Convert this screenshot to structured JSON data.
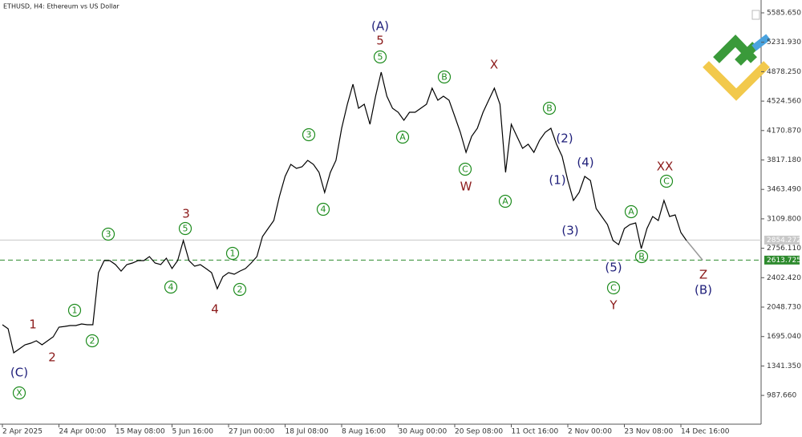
{
  "chart_data": {
    "type": "line",
    "title": "ETHUSD, H4:  Ethereum vs US Dollar",
    "color": "#000000",
    "ylim": [
      651.5,
      5739.8
    ],
    "yticks": [
      {
        "value": 5585.65,
        "label": "5585.650"
      },
      {
        "value": 5231.93,
        "label": "5231.930"
      },
      {
        "value": 4878.25,
        "label": "4878.250"
      },
      {
        "value": 4524.56,
        "label": "4524.560"
      },
      {
        "value": 4170.87,
        "label": "4170.870"
      },
      {
        "value": 3817.18,
        "label": "3817.180"
      },
      {
        "value": 3463.49,
        "label": "3463.490"
      },
      {
        "value": 3109.8,
        "label": "3109.800"
      },
      {
        "value": 2756.11,
        "label": "2756.110"
      },
      {
        "value": 2402.42,
        "label": "2402.420"
      },
      {
        "value": 2048.73,
        "label": "2048.730"
      },
      {
        "value": 1695.04,
        "label": "1695.040"
      },
      {
        "value": 1341.35,
        "label": "1341.350"
      },
      {
        "value": 987.66,
        "label": "987.660"
      }
    ],
    "categories": [
      "2 Apr 2025",
      null,
      null,
      null,
      null,
      null,
      null,
      null,
      null,
      null,
      "24 Apr 00:00",
      null,
      null,
      null,
      null,
      null,
      null,
      null,
      null,
      null,
      "15 May 08:00",
      null,
      null,
      null,
      null,
      null,
      null,
      null,
      null,
      null,
      "5 Jun 16:00",
      null,
      null,
      null,
      null,
      null,
      null,
      null,
      null,
      null,
      "27 Jun 00:00",
      null,
      null,
      null,
      null,
      null,
      null,
      null,
      null,
      null,
      "18 Jul 08:00",
      null,
      null,
      null,
      null,
      null,
      null,
      null,
      null,
      null,
      "8 Aug 16:00",
      null,
      null,
      null,
      null,
      null,
      null,
      null,
      null,
      null,
      "30 Aug 00:00",
      null,
      null,
      null,
      null,
      null,
      null,
      null,
      null,
      null,
      "20 Sep 08:00",
      null,
      null,
      null,
      null,
      null,
      null,
      null,
      null,
      null,
      "11 Oct 16:00",
      null,
      null,
      null,
      null,
      null,
      null,
      null,
      null,
      null,
      "2 Nov 00:00",
      null,
      null,
      null,
      null,
      null,
      null,
      null,
      null,
      null,
      "23 Nov 08:00",
      null,
      null,
      null,
      null,
      null,
      null,
      null,
      null,
      null,
      "14 Dec 16:00",
      null
    ],
    "values": [
      1837,
      1789,
      1500,
      1547,
      1596,
      1615,
      1644,
      1596,
      1644,
      1692,
      1808,
      1817,
      1827,
      1827,
      1846,
      1837,
      1837,
      2463,
      2608,
      2608,
      2560,
      2482,
      2560,
      2579,
      2608,
      2608,
      2656,
      2579,
      2560,
      2637,
      2512,
      2608,
      2849,
      2608,
      2540,
      2560,
      2512,
      2463,
      2270,
      2415,
      2463,
      2444,
      2482,
      2512,
      2579,
      2656,
      2897,
      2993,
      3090,
      3379,
      3620,
      3764,
      3716,
      3735,
      3812,
      3764,
      3668,
      3427,
      3668,
      3812,
      4198,
      4487,
      4728,
      4439,
      4487,
      4246,
      4583,
      4872,
      4583,
      4439,
      4391,
      4294,
      4391,
      4391,
      4439,
      4487,
      4680,
      4535,
      4583,
      4535,
      4342,
      4150,
      3909,
      4102,
      4198,
      4391,
      4535,
      4680,
      4487,
      3668,
      4246,
      4102,
      3957,
      4006,
      3909,
      4054,
      4150,
      4198,
      4006,
      3861,
      3571,
      3331,
      3427,
      3620,
      3571,
      3234,
      3138,
      3041,
      2849,
      2800,
      2993,
      3041,
      3061,
      2752,
      2993,
      3138,
      3090,
      3331,
      3138,
      3157,
      2945,
      2849
    ],
    "price_lines": [
      {
        "value": 2854.272,
        "color": "#c8c8c8",
        "dashed": false
      },
      {
        "value": 2613.725,
        "color": "#2e8b2e",
        "dashed": true
      }
    ],
    "annotations": [
      {
        "text": "(C)",
        "color": "#1f1f7a",
        "circled": false
      },
      {
        "text": "X",
        "color": "#1e8c1e",
        "circled": true
      },
      {
        "text": "1",
        "color": "#8b1a1a",
        "circled": false
      },
      {
        "text": "2",
        "color": "#8b1a1a",
        "circled": false
      },
      {
        "text": "1",
        "color": "#1e8c1e",
        "circled": true
      },
      {
        "text": "2",
        "color": "#1e8c1e",
        "circled": true
      },
      {
        "text": "3",
        "color": "#1e8c1e",
        "circled": true
      },
      {
        "text": "4",
        "color": "#1e8c1e",
        "circled": true
      },
      {
        "text": "5",
        "color": "#1e8c1e",
        "circled": true
      },
      {
        "text": "3",
        "color": "#8b1a1a",
        "circled": false
      },
      {
        "text": "4",
        "color": "#8b1a1a",
        "circled": false
      },
      {
        "text": "1",
        "color": "#1e8c1e",
        "circled": true
      },
      {
        "text": "2",
        "color": "#1e8c1e",
        "circled": true
      },
      {
        "text": "3",
        "color": "#1e8c1e",
        "circled": true
      },
      {
        "text": "4",
        "color": "#1e8c1e",
        "circled": true
      },
      {
        "text": "5",
        "color": "#1e8c1e",
        "circled": true
      },
      {
        "text": "5",
        "color": "#8b1a1a",
        "circled": false
      },
      {
        "text": "(A)",
        "color": "#1f1f7a",
        "circled": false
      },
      {
        "text": "A",
        "color": "#1e8c1e",
        "circled": true
      },
      {
        "text": "B",
        "color": "#1e8c1e",
        "circled": true
      },
      {
        "text": "C",
        "color": "#1e8c1e",
        "circled": true
      },
      {
        "text": "W",
        "color": "#8b1a1a",
        "circled": false
      },
      {
        "text": "X",
        "color": "#8b1a1a",
        "circled": false
      },
      {
        "text": "A",
        "color": "#1e8c1e",
        "circled": true
      },
      {
        "text": "B",
        "color": "#1e8c1e",
        "circled": true
      },
      {
        "text": "(2)",
        "color": "#1f1f7a",
        "circled": false
      },
      {
        "text": "(1)",
        "color": "#1f1f7a",
        "circled": false
      },
      {
        "text": "(4)",
        "color": "#1f1f7a",
        "circled": false
      },
      {
        "text": "(3)",
        "color": "#1f1f7a",
        "circled": false
      },
      {
        "text": "(5)",
        "color": "#1f1f7a",
        "circled": false
      },
      {
        "text": "C",
        "color": "#1e8c1e",
        "circled": true
      },
      {
        "text": "Y",
        "color": "#8b1a1a",
        "circled": false
      },
      {
        "text": "A",
        "color": "#1e8c1e",
        "circled": true
      },
      {
        "text": "B",
        "color": "#1e8c1e",
        "circled": true
      },
      {
        "text": "XX",
        "color": "#8b1a1a",
        "circled": false
      },
      {
        "text": "C",
        "color": "#1e8c1e",
        "circled": true
      },
      {
        "text": "Z",
        "color": "#8b1a1a",
        "circled": false
      },
      {
        "text": "(B)",
        "color": "#1f1f7a",
        "circled": false
      }
    ]
  }
}
